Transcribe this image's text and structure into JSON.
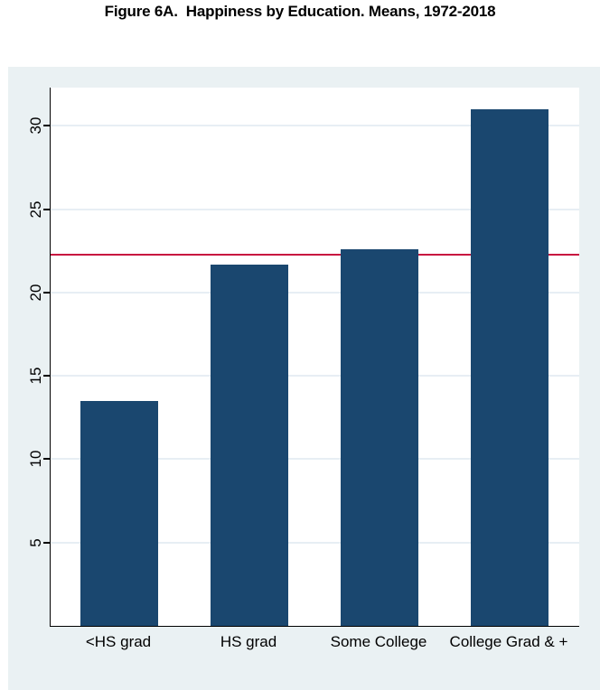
{
  "figure": {
    "title": "Figure 6A.  Happiness by Education. Means, 1972-2018"
  },
  "chart_data": {
    "type": "bar",
    "title": "Figure 6A.  Happiness by Education. Means, 1972-2018",
    "categories": [
      "<HS grad",
      "HS grad",
      "Some College",
      "College Grad & +"
    ],
    "values": [
      13.5,
      21.7,
      22.6,
      31.0
    ],
    "reference_line": {
      "value": 22.3
    },
    "xlabel": "",
    "ylabel": "",
    "ylim": [
      0,
      32.3
    ],
    "yticks": [
      5,
      10,
      15,
      20,
      25,
      30
    ],
    "grid": true,
    "legend": "none",
    "colors": {
      "bar": "#1a476f",
      "reference_line": "#c81240",
      "outer_background": "#eaf1f3",
      "plot_background": "#ffffff",
      "gridline": "#e7eef4",
      "axis": "#000000",
      "text": "#000000"
    }
  }
}
